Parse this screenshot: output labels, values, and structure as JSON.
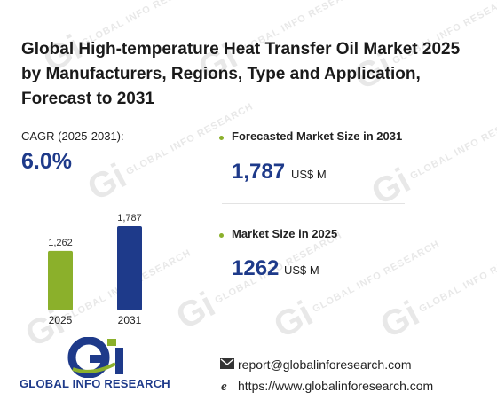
{
  "header": {
    "title": "Global High-temperature Heat Transfer Oil Market 2025 by Manufacturers, Regions, Type and Application, Forecast to 2031"
  },
  "cagr": {
    "label": "CAGR (2025-2031):",
    "value": "6.0%"
  },
  "metrics": {
    "forecast": {
      "label": "Forecasted Market Size in 2031",
      "value": "1,787",
      "unit": "US$ M"
    },
    "current": {
      "label": "Market Size in 2025",
      "value": "1262",
      "unit": "US$ M"
    }
  },
  "chart_data": {
    "type": "bar",
    "categories": [
      "2025",
      "2031"
    ],
    "values": [
      1262,
      1787
    ],
    "value_labels": [
      "1,262",
      "1,787"
    ],
    "colors": [
      "#8bb02b",
      "#1e3a8a"
    ],
    "title": "",
    "xlabel": "",
    "ylabel": ""
  },
  "brand": {
    "logo_name": "GLOBAL INFO RESEARCH",
    "watermark_text": "GLOBAL INFO RESEARCH",
    "watermark_glyph": "Gi",
    "colors": {
      "blue": "#1e3a8a",
      "green": "#8bb02b"
    }
  },
  "contact": {
    "email": "report@globalinforesearch.com",
    "website": "https://www.globalinforesearch.com"
  }
}
